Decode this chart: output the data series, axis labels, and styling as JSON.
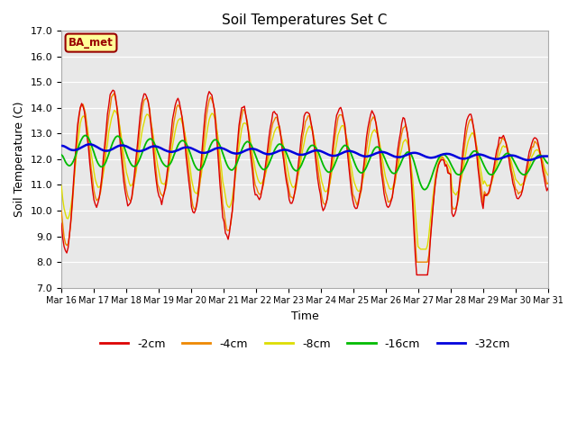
{
  "title": "Soil Temperatures Set C",
  "xlabel": "Time",
  "ylabel": "Soil Temperature (C)",
  "ylim": [
    7.0,
    17.0
  ],
  "yticks": [
    7.0,
    8.0,
    9.0,
    10.0,
    11.0,
    12.0,
    13.0,
    14.0,
    15.0,
    16.0,
    17.0
  ],
  "xtick_labels": [
    "Mar 16",
    "Mar 17",
    "Mar 18",
    "Mar 19",
    "Mar 20",
    "Mar 21",
    "Mar 22",
    "Mar 23",
    "Mar 24",
    "Mar 25",
    "Mar 26",
    "Mar 27",
    "Mar 28",
    "Mar 29",
    "Mar 30",
    "Mar 31"
  ],
  "xtick_positions": [
    16,
    17,
    18,
    19,
    20,
    21,
    22,
    23,
    24,
    25,
    26,
    27,
    28,
    29,
    30,
    31
  ],
  "legend_labels": [
    "-2cm",
    "-4cm",
    "-8cm",
    "-16cm",
    "-32cm"
  ],
  "colors": {
    "-2cm": "#dd0000",
    "-4cm": "#ee8800",
    "-8cm": "#dddd00",
    "-16cm": "#00bb00",
    "-32cm": "#0000dd"
  },
  "plot_bg": "#e8e8e8",
  "fig_bg": "#ffffff",
  "grid_color": "#ffffff",
  "annotation_text": "BA_met",
  "annotation_bg": "#ffff99",
  "annotation_border": "#990000",
  "figsize": [
    6.4,
    4.8
  ],
  "dpi": 100
}
